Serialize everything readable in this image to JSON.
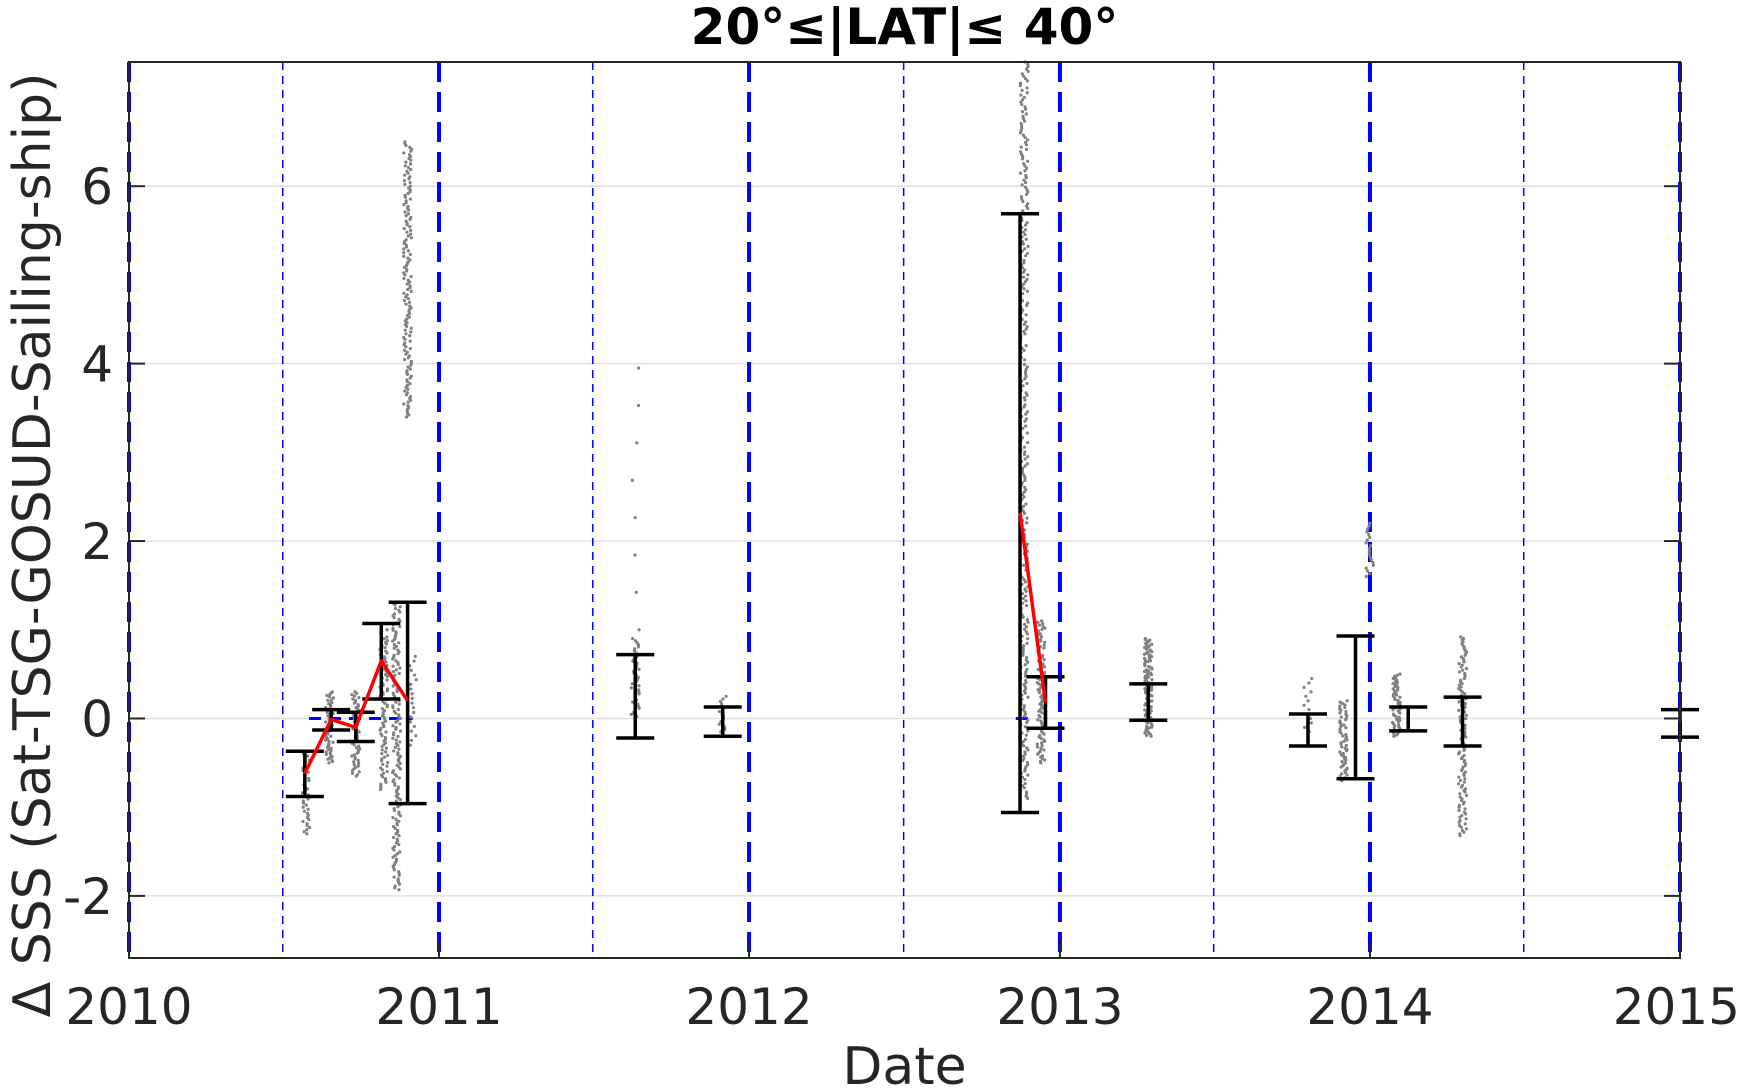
{
  "chart_data": {
    "type": "scatter",
    "title": "20°≤|LAT|≤ 40°",
    "xlabel": "Date",
    "ylabel": "Δ SSS (Sat-TSG-GOSUD-Sailing-ship)",
    "x_range": [
      "2010-01-01",
      "2015-01-01"
    ],
    "ylim": [
      -2.7,
      7.4
    ],
    "x_ticks": [
      {
        "date": "2010-01-01",
        "label": "2010"
      },
      {
        "date": "2011-01-01",
        "label": "2011"
      },
      {
        "date": "2012-01-01",
        "label": "2012"
      },
      {
        "date": "2013-01-01",
        "label": "2013"
      },
      {
        "date": "2014-01-01",
        "label": "2014"
      },
      {
        "date": "2015-01-01",
        "label": "2015"
      }
    ],
    "y_ticks": [
      -2,
      0,
      2,
      4,
      6
    ],
    "y_tick_labels": [
      "-2",
      "0",
      "2",
      "4",
      "6"
    ],
    "grid": "horizontal",
    "year_lines": [
      "2010-01-01",
      "2011-01-01",
      "2012-01-01",
      "2013-01-01",
      "2014-01-01",
      "2015-01-01"
    ],
    "midyear_lines": [
      "2010-07-01",
      "2011-07-01",
      "2012-07-01",
      "2013-07-01",
      "2014-07-01"
    ],
    "colors": {
      "scatter": "#808080",
      "mean_line": "#ff0000",
      "error_bars": "#000000",
      "year_lines": "#0000ff",
      "zero_ref": "#0000ff",
      "grid": "#e0e0e0",
      "axes": "#262626"
    },
    "error_bars": [
      {
        "date": "2010-07-27",
        "low": -0.88,
        "high": -0.37
      },
      {
        "date": "2010-08-27",
        "low": -0.13,
        "high": 0.1
      },
      {
        "date": "2010-09-25",
        "low": -0.26,
        "high": 0.07
      },
      {
        "date": "2010-10-25",
        "low": 0.22,
        "high": 1.07
      },
      {
        "date": "2010-11-25",
        "low": -0.96,
        "high": 1.31
      },
      {
        "date": "2011-08-20",
        "low": -0.22,
        "high": 0.72
      },
      {
        "date": "2011-12-01",
        "low": -0.2,
        "high": 0.13
      },
      {
        "date": "2012-11-15",
        "low": -1.06,
        "high": 5.69
      },
      {
        "date": "2012-12-15",
        "low": -0.11,
        "high": 0.47
      },
      {
        "date": "2013-04-15",
        "low": -0.02,
        "high": 0.39
      },
      {
        "date": "2013-10-20",
        "low": -0.31,
        "high": 0.05
      },
      {
        "date": "2013-12-15",
        "low": -0.68,
        "high": 0.93
      },
      {
        "date": "2014-02-15",
        "low": -0.14,
        "high": 0.13
      },
      {
        "date": "2014-04-20",
        "low": -0.31,
        "high": 0.24
      },
      {
        "date": "2015-01-01",
        "low": -0.21,
        "high": 0.1
      }
    ],
    "mean_line": [
      {
        "date": "2010-07-27",
        "value": -0.62
      },
      {
        "date": "2010-08-27",
        "value": -0.01
      },
      {
        "date": "2010-09-25",
        "value": -0.1
      },
      {
        "date": "2010-10-25",
        "value": 0.65
      },
      {
        "date": "2010-11-25",
        "value": 0.2
      }
    ],
    "mean_line_2": [
      {
        "date": "2012-11-15",
        "value": 2.32
      },
      {
        "date": "2012-12-15",
        "value": 0.18
      }
    ],
    "zero_ref_segments": [
      {
        "start": "2010-08-01",
        "end": "2010-12-01",
        "value": 0.0
      },
      {
        "start": "2012-11-10",
        "end": "2012-12-01",
        "value": 0.0
      }
    ],
    "scatter_clusters": [
      {
        "date": "2010-07-28",
        "low": -1.3,
        "high": -0.4,
        "count": 40
      },
      {
        "date": "2010-08-25",
        "low": -0.5,
        "high": 0.3,
        "count": 60
      },
      {
        "date": "2010-09-25",
        "low": -0.65,
        "high": 0.3,
        "count": 60
      },
      {
        "date": "2010-10-28",
        "low": -0.8,
        "high": 1.0,
        "count": 90
      },
      {
        "date": "2010-11-12",
        "low": -1.93,
        "high": 1.3,
        "count": 160
      },
      {
        "date": "2010-11-25",
        "low": 3.4,
        "high": 6.5,
        "count": 150
      },
      {
        "date": "2010-12-01",
        "low": -0.3,
        "high": 0.7,
        "count": 20
      },
      {
        "date": "2011-08-20",
        "low": 0.0,
        "high": 0.9,
        "count": 40
      },
      {
        "date": "2011-08-20",
        "low": 1.0,
        "high": 3.95,
        "count": 8
      },
      {
        "date": "2011-12-01",
        "low": -0.15,
        "high": 0.25,
        "count": 15
      },
      {
        "date": "2012-11-20",
        "low": 0.5,
        "high": 7.4,
        "count": 260
      },
      {
        "date": "2012-11-20",
        "low": -0.9,
        "high": 0.5,
        "count": 60
      },
      {
        "date": "2012-12-10",
        "low": -0.5,
        "high": 1.1,
        "count": 100
      },
      {
        "date": "2013-04-15",
        "low": -0.2,
        "high": 0.9,
        "count": 120
      },
      {
        "date": "2013-10-20",
        "low": -0.25,
        "high": 0.45,
        "count": 15
      },
      {
        "date": "2013-12-01",
        "low": -0.7,
        "high": 0.2,
        "count": 60
      },
      {
        "date": "2014-01-01",
        "low": 1.6,
        "high": 2.2,
        "count": 20
      },
      {
        "date": "2014-02-01",
        "low": -0.2,
        "high": 0.5,
        "count": 60
      },
      {
        "date": "2014-04-20",
        "low": -1.32,
        "high": 0.92,
        "count": 120
      }
    ]
  }
}
